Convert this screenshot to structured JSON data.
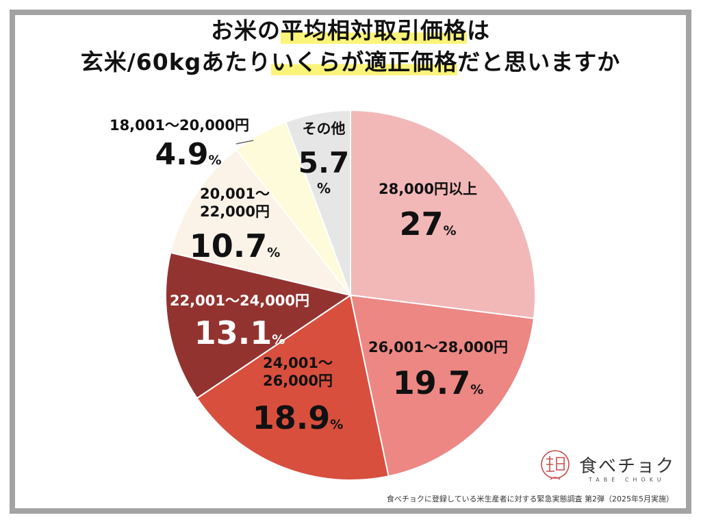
{
  "title": {
    "line1_a": "お米の",
    "line1_b": "平均相対取引価格",
    "line1_c": "は",
    "line2_a": "玄米/60kgあたり",
    "line2_b": "いくらが適正価格",
    "line2_c": "だと思いますか"
  },
  "chart_data": {
    "type": "pie",
    "unit": "%",
    "slices": [
      {
        "label": "28,000円以上",
        "value": 27,
        "display": "27",
        "color": "#f2b8b8"
      },
      {
        "label": "26,001〜28,000円",
        "value": 19.7,
        "display": "19.7",
        "color": "#ec8783"
      },
      {
        "label": "24,001〜26,000円",
        "label_lines": [
          "24,001〜",
          "26,000円"
        ],
        "value": 18.9,
        "display": "18.9",
        "color": "#d84f3e"
      },
      {
        "label": "22,001〜24,000円",
        "value": 13.1,
        "display": "13.1",
        "color": "#933330"
      },
      {
        "label": "20,001〜22,000円",
        "label_lines": [
          "20,001〜",
          "22,000円"
        ],
        "value": 10.7,
        "display": "10.7",
        "color": "#fbf3e8"
      },
      {
        "label": "18,001〜20,000円",
        "value": 4.9,
        "display": "4.9",
        "color": "#fdfbd9"
      },
      {
        "label": "その他",
        "value": 5.7,
        "display": "5.7",
        "color": "#e6e6e6"
      }
    ]
  },
  "logo": {
    "brand": "食べチョク",
    "sub": "TABE CHOKU"
  },
  "source": "食べチョクに登録している米生産者に対する緊急実態調査 第2弾（2025年5月実施）"
}
